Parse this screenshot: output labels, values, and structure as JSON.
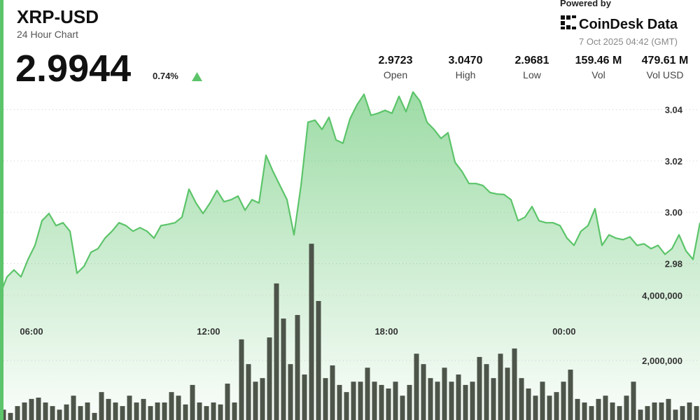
{
  "header": {
    "title": "XRP-USD",
    "subtitle": "24 Hour Chart",
    "price": "2.9944",
    "change": "0.74%",
    "powered_by": "Powered by",
    "brand": "CoinDesk Data",
    "timestamp": "7 Oct 2025 04:42 (GMT)"
  },
  "stats": [
    {
      "value": "2.9723",
      "label": "Open"
    },
    {
      "value": "3.0470",
      "label": "High"
    },
    {
      "value": "2.9681",
      "label": "Low"
    },
    {
      "value": "159.46 M",
      "label": "Vol"
    },
    {
      "value": "479.61 M",
      "label": "Vol USD"
    }
  ],
  "chart_data": [
    {
      "type": "area",
      "color": "#5cc46a",
      "xlim": [
        0,
        24
      ],
      "xticks": [
        {
          "value": 1.08,
          "label": "06:00"
        },
        {
          "value": 7.15,
          "label": "12:00"
        },
        {
          "value": 13.25,
          "label": "18:00"
        },
        {
          "value": 19.34,
          "label": "00:00"
        }
      ],
      "ylim": [
        2.919,
        3.05
      ],
      "yticks": [
        2.98,
        {
          "value": 3,
          "label": "3.00"
        },
        3.02,
        3.04
      ],
      "grid": true,
      "values": [
        2.9679,
        2.9748,
        2.9775,
        2.9748,
        2.9816,
        2.9871,
        2.9967,
        2.9995,
        2.9948,
        2.9959,
        2.9926,
        2.9762,
        2.9789,
        2.9844,
        2.9858,
        2.9899,
        2.9926,
        2.9959,
        2.9948,
        2.9926,
        2.994,
        2.9926,
        2.9899,
        2.9948,
        2.9953,
        2.9959,
        2.9981,
        3.009,
        3.0036,
        2.9995,
        3.0036,
        3.0085,
        3.0041,
        3.0049,
        3.0063,
        3.0008,
        3.0049,
        3.0036,
        3.0222,
        3.0159,
        3.0104,
        3.0049,
        2.9912,
        3.0104,
        3.0351,
        3.0359,
        3.0323,
        3.037,
        3.0282,
        3.0269,
        3.0364,
        3.0419,
        3.046,
        3.0378,
        3.0386,
        3.0397,
        3.0386,
        3.0452,
        3.0392,
        3.0469,
        3.0433,
        3.0351,
        3.0323,
        3.0288,
        3.031,
        3.0195,
        3.0159,
        3.0112,
        3.0112,
        3.0104,
        3.0077,
        3.0071,
        3.0069,
        3.0049,
        2.9967,
        2.9981,
        3.0022,
        2.9967,
        2.9959,
        2.9959,
        2.9948,
        2.9899,
        2.9871,
        2.9926,
        2.9948,
        3.0014,
        2.9871,
        2.9912,
        2.9899,
        2.9893,
        2.9904,
        2.9871,
        2.9877,
        2.9858,
        2.9871,
        2.9836,
        2.9858,
        2.9912,
        2.9849,
        2.9816,
        2.9959
      ]
    },
    {
      "type": "bar",
      "color": "#4d5449",
      "ylim": [
        0,
        10500000
      ],
      "yticks": [
        {
          "value": 2000000,
          "label": "2,000,000"
        },
        {
          "value": 4000000,
          "label": "4,000,000"
        }
      ],
      "grid": true,
      "values": [
        490000,
        390000,
        600000,
        710000,
        820000,
        860000,
        710000,
        600000,
        490000,
        650000,
        920000,
        600000,
        710000,
        390000,
        1030000,
        820000,
        710000,
        600000,
        920000,
        710000,
        820000,
        600000,
        710000,
        710000,
        1030000,
        920000,
        650000,
        1250000,
        710000,
        600000,
        710000,
        650000,
        1290000,
        710000,
        2650000,
        1890000,
        1350000,
        1460000,
        2710000,
        4370000,
        3290000,
        1890000,
        3400000,
        1570000,
        5590000,
        3830000,
        1460000,
        1850000,
        1250000,
        1030000,
        1350000,
        1350000,
        1780000,
        1350000,
        1250000,
        1140000,
        1350000,
        920000,
        1250000,
        2210000,
        1890000,
        1460000,
        1350000,
        1780000,
        1350000,
        1570000,
        1250000,
        1350000,
        2110000,
        1890000,
        1460000,
        2210000,
        1780000,
        2370000,
        1460000,
        1140000,
        920000,
        1350000,
        920000,
        1030000,
        1350000,
        1720000,
        820000,
        710000,
        600000,
        820000,
        920000,
        710000,
        600000,
        920000,
        1350000,
        490000,
        600000,
        710000,
        710000,
        820000,
        490000,
        600000,
        710000,
        600000
      ]
    }
  ]
}
